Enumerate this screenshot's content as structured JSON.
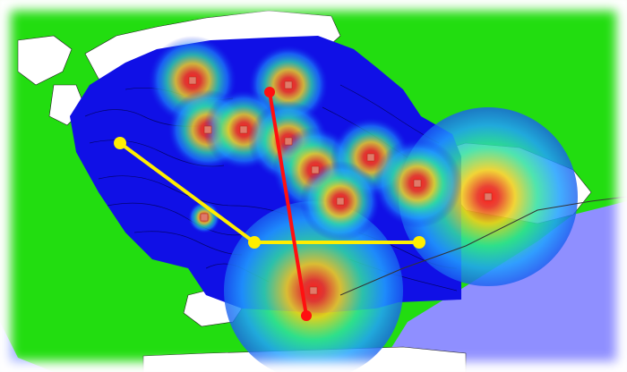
{
  "map": {
    "colors": {
      "land": "#22dd10",
      "water": "#8f8fff",
      "field": "#1010e6",
      "coast": "#ffffff",
      "contour": "#000040",
      "path_red": "#ff1010",
      "path_yellow": "#ffee00",
      "frame": "#ffffff"
    },
    "heatmap": {
      "type": "kernel-density",
      "hotspot_count": 14,
      "colormap": [
        "blue",
        "cyan",
        "green",
        "yellow",
        "red"
      ]
    },
    "routes": [
      {
        "name": "red-route",
        "segments": 1
      },
      {
        "name": "yellow-route",
        "segments": 2
      }
    ]
  }
}
